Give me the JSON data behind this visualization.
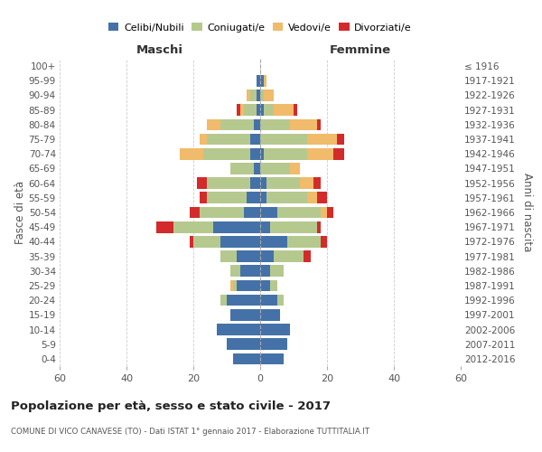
{
  "age_groups": [
    "0-4",
    "5-9",
    "10-14",
    "15-19",
    "20-24",
    "25-29",
    "30-34",
    "35-39",
    "40-44",
    "45-49",
    "50-54",
    "55-59",
    "60-64",
    "65-69",
    "70-74",
    "75-79",
    "80-84",
    "85-89",
    "90-94",
    "95-99",
    "100+"
  ],
  "birth_years": [
    "2012-2016",
    "2007-2011",
    "2002-2006",
    "1997-2001",
    "1992-1996",
    "1987-1991",
    "1982-1986",
    "1977-1981",
    "1972-1976",
    "1967-1971",
    "1962-1966",
    "1957-1961",
    "1952-1956",
    "1947-1951",
    "1942-1946",
    "1937-1941",
    "1932-1936",
    "1927-1931",
    "1922-1926",
    "1917-1921",
    "≤ 1916"
  ],
  "male": {
    "celibi": [
      8,
      10,
      13,
      9,
      10,
      7,
      6,
      7,
      12,
      14,
      5,
      4,
      3,
      2,
      3,
      3,
      2,
      1,
      1,
      1,
      0
    ],
    "coniugati": [
      0,
      0,
      0,
      0,
      2,
      1,
      3,
      5,
      8,
      12,
      13,
      12,
      13,
      7,
      14,
      13,
      10,
      4,
      2,
      0,
      0
    ],
    "vedovi": [
      0,
      0,
      0,
      0,
      0,
      1,
      0,
      0,
      0,
      0,
      0,
      0,
      0,
      0,
      7,
      2,
      4,
      1,
      1,
      0,
      0
    ],
    "divorziati": [
      0,
      0,
      0,
      0,
      0,
      0,
      0,
      0,
      1,
      5,
      3,
      2,
      3,
      0,
      0,
      0,
      0,
      1,
      0,
      0,
      0
    ]
  },
  "female": {
    "nubili": [
      7,
      8,
      9,
      6,
      5,
      3,
      3,
      4,
      8,
      3,
      5,
      2,
      2,
      0,
      1,
      0,
      0,
      1,
      0,
      1,
      0
    ],
    "coniugate": [
      0,
      0,
      0,
      0,
      2,
      2,
      4,
      9,
      10,
      14,
      13,
      12,
      10,
      9,
      13,
      14,
      9,
      3,
      1,
      0,
      0
    ],
    "vedove": [
      0,
      0,
      0,
      0,
      0,
      0,
      0,
      0,
      0,
      0,
      2,
      3,
      4,
      3,
      8,
      9,
      8,
      6,
      3,
      1,
      0
    ],
    "divorziate": [
      0,
      0,
      0,
      0,
      0,
      0,
      0,
      2,
      2,
      1,
      2,
      3,
      2,
      0,
      3,
      2,
      1,
      1,
      0,
      0,
      0
    ]
  },
  "colors": {
    "celibi": "#4472a8",
    "coniugati": "#b5c98e",
    "vedovi": "#f0bb6a",
    "divorziati": "#d32b2b"
  },
  "xlim": 60,
  "title": "Popolazione per età, sesso e stato civile - 2017",
  "subtitle": "COMUNE DI VICO CANAVESE (TO) - Dati ISTAT 1° gennaio 2017 - Elaborazione TUTTITALIA.IT",
  "ylabel_left": "Fasce di età",
  "ylabel_right": "Anni di nascita",
  "xlabel_left": "Maschi",
  "xlabel_right": "Femmine",
  "background_color": "#ffffff",
  "grid_color": "#cccccc"
}
